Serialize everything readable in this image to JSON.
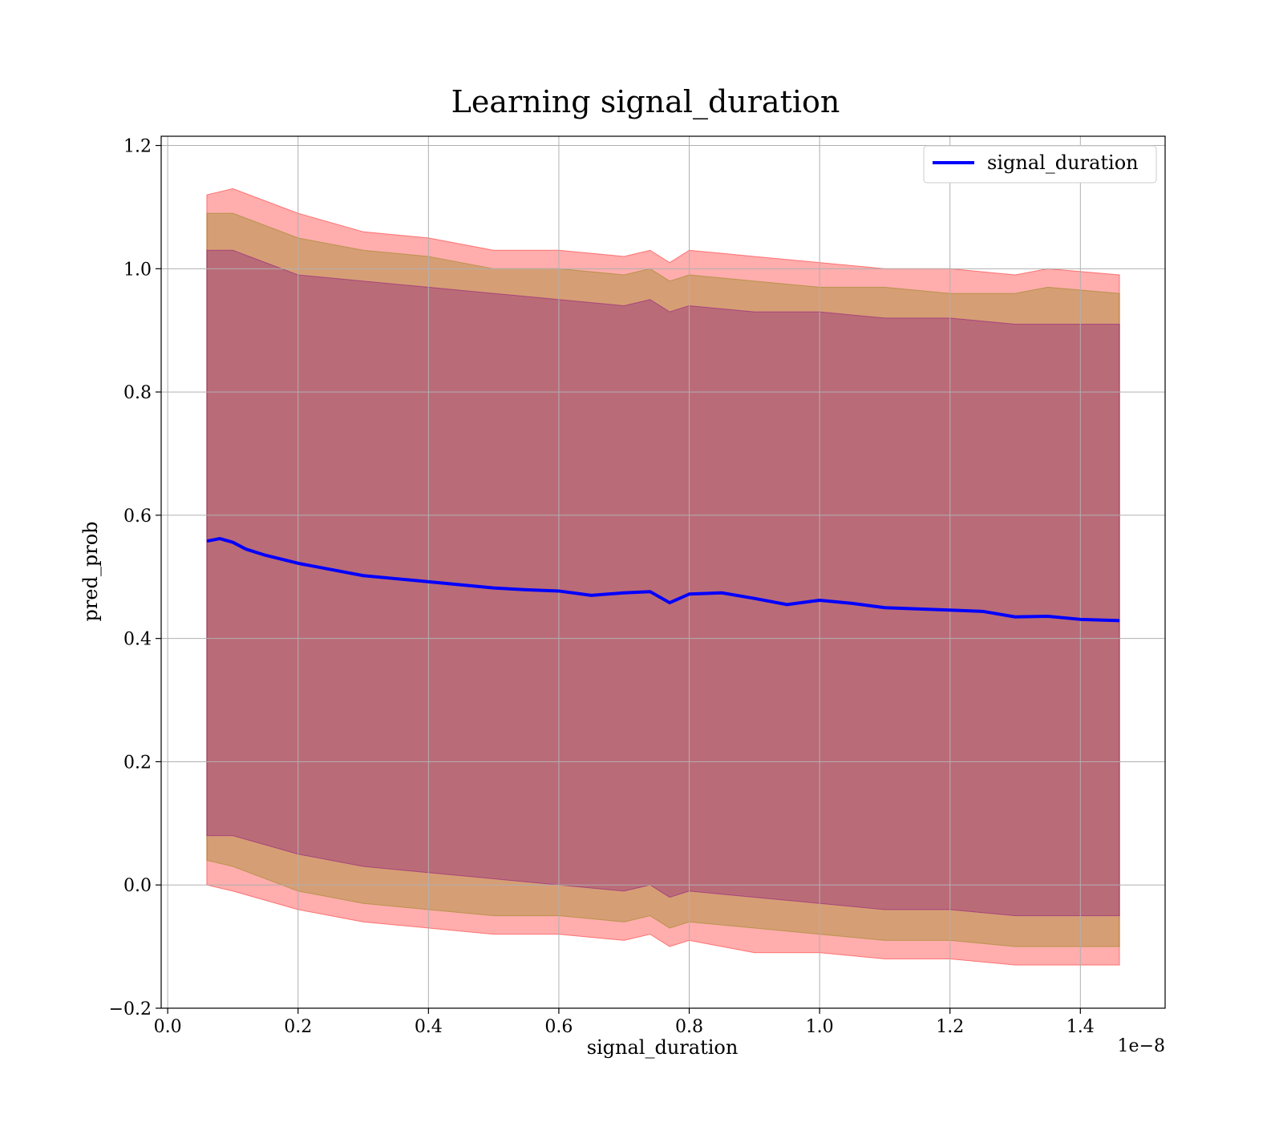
{
  "chart_data": {
    "type": "line",
    "title": "Learning signal_duration",
    "xlabel": "signal_duration",
    "ylabel": "pred_prob",
    "x_offset_label": "1e−8",
    "x_scale_factor": 1e-08,
    "xlim": [
      -0.01,
      1.53
    ],
    "ylim": [
      -0.2,
      1.215
    ],
    "x_ticks": [
      0.0,
      0.2,
      0.4,
      0.6,
      0.8,
      1.0,
      1.2,
      1.4
    ],
    "x_tick_labels": [
      "0.0",
      "0.2",
      "0.4",
      "0.6",
      "0.8",
      "1.0",
      "1.2",
      "1.4"
    ],
    "y_ticks": [
      -0.2,
      0.0,
      0.2,
      0.4,
      0.6,
      0.8,
      1.0,
      1.2
    ],
    "y_tick_labels": [
      "−0.2",
      "0.0",
      "0.2",
      "0.4",
      "0.6",
      "0.8",
      "1.0",
      "1.2"
    ],
    "grid": true,
    "legend_position": "top-right",
    "colors": {
      "mean_line": "#0000ff",
      "band_outer": "#ff0000",
      "band_middle": "#808000",
      "band_inner": "#800080"
    },
    "series": [
      {
        "name": "signal_duration",
        "x": [
          0.06,
          0.08,
          0.1,
          0.12,
          0.15,
          0.2,
          0.25,
          0.3,
          0.35,
          0.4,
          0.45,
          0.5,
          0.55,
          0.6,
          0.65,
          0.7,
          0.74,
          0.77,
          0.8,
          0.85,
          0.9,
          0.95,
          1.0,
          1.05,
          1.1,
          1.15,
          1.2,
          1.25,
          1.3,
          1.35,
          1.4,
          1.46
        ],
        "y": [
          0.558,
          0.562,
          0.556,
          0.545,
          0.535,
          0.522,
          0.512,
          0.502,
          0.497,
          0.492,
          0.487,
          0.482,
          0.479,
          0.477,
          0.47,
          0.474,
          0.476,
          0.458,
          0.472,
          0.474,
          0.465,
          0.455,
          0.462,
          0.457,
          0.45,
          0.448,
          0.446,
          0.444,
          0.435,
          0.436,
          0.431,
          0.429
        ]
      }
    ],
    "bands": [
      {
        "x": [
          0.06,
          0.1,
          0.2,
          0.3,
          0.4,
          0.5,
          0.6,
          0.7,
          0.74,
          0.77,
          0.8,
          0.9,
          1.0,
          1.1,
          1.2,
          1.3,
          1.35,
          1.46
        ],
        "upper": [
          1.12,
          1.13,
          1.09,
          1.06,
          1.05,
          1.03,
          1.03,
          1.02,
          1.03,
          1.01,
          1.03,
          1.02,
          1.01,
          1.0,
          1.0,
          0.99,
          1.0,
          0.99
        ],
        "lower": [
          0.0,
          -0.01,
          -0.04,
          -0.06,
          -0.07,
          -0.08,
          -0.08,
          -0.09,
          -0.08,
          -0.1,
          -0.09,
          -0.11,
          -0.11,
          -0.12,
          -0.12,
          -0.13,
          -0.13,
          -0.13
        ]
      },
      {
        "x": [
          0.06,
          0.1,
          0.2,
          0.3,
          0.4,
          0.5,
          0.6,
          0.7,
          0.74,
          0.77,
          0.8,
          0.9,
          1.0,
          1.1,
          1.2,
          1.3,
          1.35,
          1.46
        ],
        "upper": [
          1.09,
          1.09,
          1.05,
          1.03,
          1.02,
          1.0,
          1.0,
          0.99,
          1.0,
          0.98,
          0.99,
          0.98,
          0.97,
          0.97,
          0.96,
          0.96,
          0.97,
          0.96
        ],
        "lower": [
          0.04,
          0.03,
          -0.01,
          -0.03,
          -0.04,
          -0.05,
          -0.05,
          -0.06,
          -0.05,
          -0.07,
          -0.06,
          -0.07,
          -0.08,
          -0.09,
          -0.09,
          -0.1,
          -0.1,
          -0.1
        ]
      },
      {
        "x": [
          0.06,
          0.1,
          0.2,
          0.3,
          0.4,
          0.5,
          0.6,
          0.7,
          0.74,
          0.77,
          0.8,
          0.9,
          1.0,
          1.1,
          1.2,
          1.3,
          1.35,
          1.46
        ],
        "upper": [
          1.03,
          1.03,
          0.99,
          0.98,
          0.97,
          0.96,
          0.95,
          0.94,
          0.95,
          0.93,
          0.94,
          0.93,
          0.93,
          0.92,
          0.92,
          0.91,
          0.91,
          0.91
        ],
        "lower": [
          0.08,
          0.08,
          0.05,
          0.03,
          0.02,
          0.01,
          0.0,
          -0.01,
          0.0,
          -0.02,
          -0.01,
          -0.02,
          -0.03,
          -0.04,
          -0.04,
          -0.05,
          -0.05,
          -0.05
        ]
      }
    ]
  }
}
